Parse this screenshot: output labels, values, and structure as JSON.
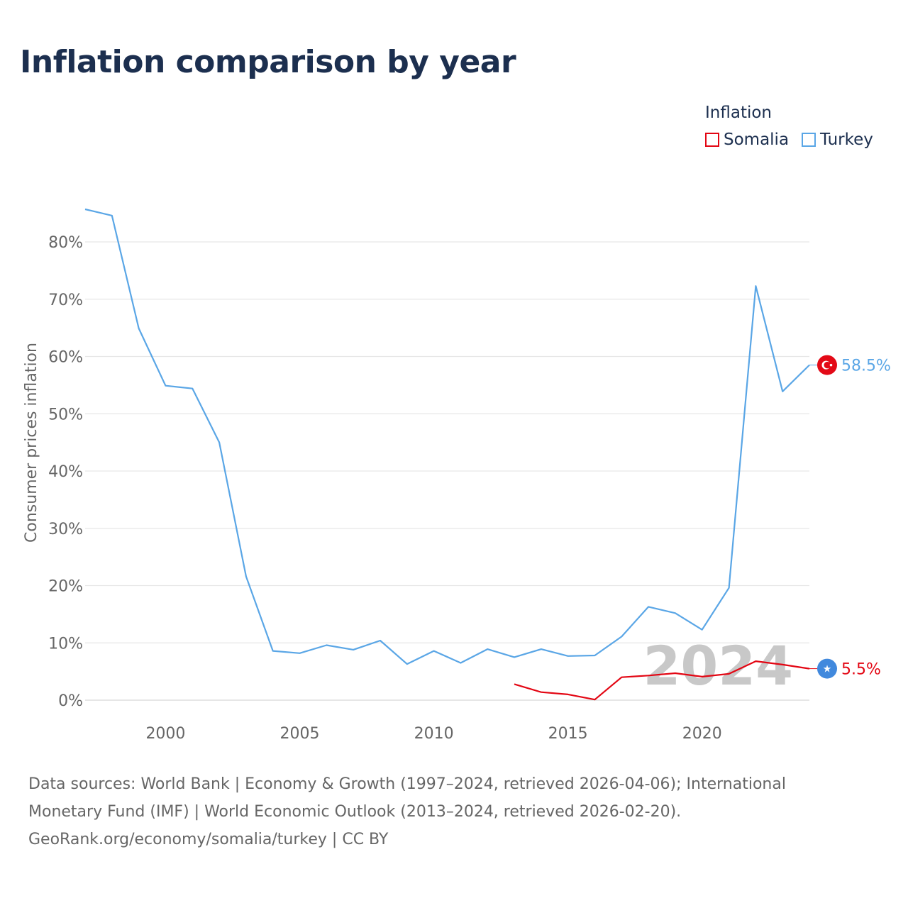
{
  "title": "Inflation comparison by year",
  "legend": {
    "title": "Inflation",
    "items": [
      {
        "label": "Somalia",
        "color": "#e30613"
      },
      {
        "label": "Turkey",
        "color": "#5aa6e6"
      }
    ]
  },
  "sources": {
    "line1": "Data sources: World Bank | Economy & Growth (1997–2024, retrieved 2026-04-06); International",
    "line2": "Monetary Fund (IMF) | World Economic Outlook (2013–2024, retrieved 2026-02-20).",
    "line3": "GeoRank.org/economy/somalia/turkey | CC BY"
  },
  "chart_data": {
    "type": "line",
    "ylabel": "Consumer prices inflation",
    "xlabel": "",
    "xlim": [
      1997,
      2024
    ],
    "ylim": [
      0,
      85
    ],
    "x_ticks": [
      2000,
      2005,
      2010,
      2015,
      2020
    ],
    "y_ticks": [
      0,
      10,
      20,
      30,
      40,
      50,
      60,
      70,
      80
    ],
    "y_tick_suffix": "%",
    "grid": true,
    "watermark_year": "2024",
    "series": [
      {
        "name": "Turkey",
        "color": "#5aa6e6",
        "end_label": "58.5%",
        "flag": "turkey-flag-icon",
        "x": [
          1997,
          1998,
          1999,
          2000,
          2001,
          2002,
          2003,
          2004,
          2005,
          2006,
          2007,
          2008,
          2009,
          2010,
          2011,
          2012,
          2013,
          2014,
          2015,
          2016,
          2017,
          2018,
          2019,
          2020,
          2021,
          2022,
          2023,
          2024
        ],
        "y": [
          85.7,
          84.6,
          64.9,
          54.9,
          54.4,
          45.0,
          21.6,
          8.6,
          8.2,
          9.6,
          8.8,
          10.4,
          6.3,
          8.6,
          6.5,
          8.9,
          7.5,
          8.9,
          7.7,
          7.8,
          11.1,
          16.3,
          15.2,
          12.3,
          19.6,
          72.3,
          53.9,
          58.5
        ]
      },
      {
        "name": "Somalia",
        "color": "#e30613",
        "end_label": "5.5%",
        "flag": "somalia-flag-icon",
        "x": [
          2013,
          2014,
          2015,
          2016,
          2017,
          2018,
          2019,
          2020,
          2021,
          2022,
          2023,
          2024
        ],
        "y": [
          2.8,
          1.4,
          1.0,
          0.1,
          4.0,
          4.3,
          4.7,
          4.1,
          4.6,
          6.8,
          6.2,
          5.5
        ]
      }
    ]
  }
}
